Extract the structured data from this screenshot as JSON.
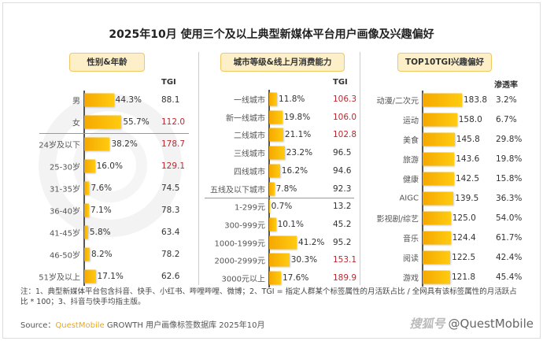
{
  "title": "2025年10月 使用三个及以上典型新媒体平台用户画像及兴趣偏好",
  "watermark_bg": "QUESTMOBILE",
  "chart_data": [
    {
      "type": "bar",
      "title": "性别&年龄",
      "value_header": "",
      "tgi_header": "TGI",
      "categories": [
        "男",
        "女",
        "24岁及以下",
        "25-30岁",
        "31-35岁",
        "36-40岁",
        "41-45岁",
        "46-50岁",
        "51岁及以上"
      ],
      "values": [
        "44.3%",
        "55.7%",
        "38.2%",
        "16.0%",
        "7.6%",
        "7.1%",
        "5.8%",
        "8.2%",
        "17.1%"
      ],
      "numbers": [
        44.3,
        55.7,
        38.2,
        16.0,
        7.6,
        7.1,
        5.8,
        8.2,
        17.1
      ],
      "tgi": [
        "88.1",
        "112.0",
        "178.7",
        "129.1",
        "74.5",
        "78.3",
        "63.4",
        "78.2",
        "62.6"
      ],
      "group_break_after": 1
    },
    {
      "type": "bar",
      "title": "城市等级&线上月消费能力",
      "tgi_header": "TGI",
      "categories": [
        "一线城市",
        "新一线城市",
        "二线城市",
        "三线城市",
        "四线城市",
        "五线及以下城市",
        "1-299元",
        "300-999元",
        "1000-1999元",
        "2000-2999元",
        "3000元以上"
      ],
      "values": [
        "11.8%",
        "19.8%",
        "21.1%",
        "23.2%",
        "16.2%",
        "7.8%",
        "0.7%",
        "10.1%",
        "41.2%",
        "30.3%",
        "17.6%"
      ],
      "numbers": [
        11.8,
        19.8,
        21.1,
        23.2,
        16.2,
        7.8,
        0.7,
        10.1,
        41.2,
        30.3,
        17.6
      ],
      "tgi": [
        "106.3",
        "106.0",
        "102.8",
        "96.5",
        "94.6",
        "92.3",
        "13.2",
        "45.2",
        "95.2",
        "153.1",
        "189.9"
      ],
      "group_break_after": 5
    },
    {
      "type": "bar",
      "title": "TOP10TGI兴趣偏好",
      "tgi_header": "渗透率",
      "categories": [
        "动漫/二次元",
        "运动",
        "美食",
        "旅游",
        "健康",
        "AIGC",
        "影视剧/综艺",
        "音乐",
        "阅读",
        "游戏"
      ],
      "values": [
        "183.8",
        "158.0",
        "145.8",
        "143.6",
        "142.5",
        "139.5",
        "125.0",
        "124.4",
        "122.5",
        "121.8"
      ],
      "numbers": [
        183.8,
        158.0,
        145.8,
        143.6,
        142.5,
        139.5,
        125.0,
        124.4,
        122.5,
        121.8
      ],
      "tgi": [
        "3.2%",
        "6.7%",
        "29.8%",
        "19.8%",
        "15.8%",
        "36.3%",
        "54.0%",
        "61.7%",
        "42.4%",
        "45.4%"
      ]
    }
  ],
  "highlight_color": "#c0262f",
  "bar_color": "#f5b400",
  "note": "注：1、典型新媒体平台包含抖音、快手、小红书、哔哩哔哩、微博；2、TGI = 指定人群某个标签属性的月活跃占比 / 全网具有该标签属性的月活跃占比 * 100；3、抖音与快手均指主版。",
  "source": {
    "prefix": "Source：",
    "brand": "QuestMobile",
    "text": " GROWTH 用户画像标签数据库 2025年10月"
  },
  "watermark": {
    "logo": "搜狐号",
    "handle": "@QuestMobile"
  }
}
